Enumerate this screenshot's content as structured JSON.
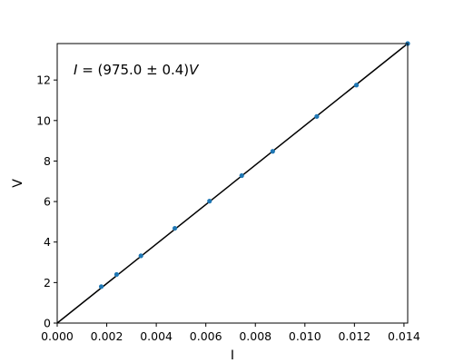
{
  "chart_data": {
    "type": "scatter",
    "title": "",
    "xlabel": "I",
    "ylabel": "V",
    "xlim": [
      0,
      0.01415
    ],
    "ylim": [
      0,
      13.8
    ],
    "xticks": [
      0,
      0.002,
      0.004,
      0.006,
      0.008,
      0.01,
      0.012,
      0.014
    ],
    "xtick_labels": [
      "0.000",
      "0.002",
      "0.004",
      "0.006",
      "0.008",
      "0.010",
      "0.012",
      "0.014"
    ],
    "yticks": [
      0,
      2,
      4,
      6,
      8,
      10,
      12
    ],
    "ytick_labels": [
      "0",
      "2",
      "4",
      "6",
      "8",
      "10",
      "12"
    ],
    "grid": false,
    "annotation": {
      "lhs": "I",
      "rhs": " = (975.0 ± 0.4)",
      "var": "V",
      "position": "top-left"
    },
    "series": [
      {
        "kind": "points",
        "color": "#1f77b4",
        "x": [
          0.00178,
          0.0024,
          0.00338,
          0.00475,
          0.00615,
          0.00745,
          0.0087,
          0.01048,
          0.01208,
          0.01415
        ],
        "y": [
          1.8,
          2.4,
          3.32,
          4.68,
          6.02,
          7.28,
          8.48,
          10.2,
          11.75,
          13.8
        ]
      },
      {
        "kind": "fit-line",
        "color": "#000000",
        "x": [
          0,
          0.01415
        ],
        "y": [
          0,
          13.8
        ]
      }
    ]
  }
}
